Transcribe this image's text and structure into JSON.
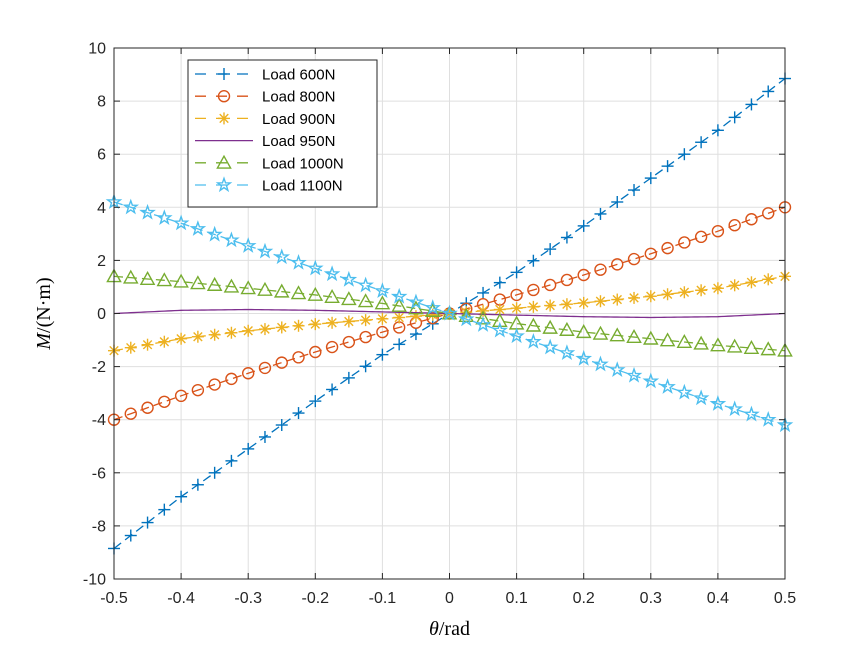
{
  "chart_data": {
    "type": "line",
    "xlabel_symbol": "θ",
    "xlabel_unit": "/rad",
    "ylabel_symbol": "M",
    "ylabel_unit": "/(N·m)",
    "xlim": [
      -0.5,
      0.5
    ],
    "ylim": [
      -10,
      10
    ],
    "xticks": [
      -0.5,
      -0.4,
      -0.3,
      -0.2,
      -0.1,
      0,
      0.1,
      0.2,
      0.3,
      0.4,
      0.5
    ],
    "xtick_labels": [
      "-0.5",
      "-0.4",
      "-0.3",
      "-0.2",
      "-0.1",
      "0",
      "0.1",
      "0.2",
      "0.3",
      "0.4",
      "0.5"
    ],
    "yticks": [
      -10,
      -8,
      -6,
      -4,
      -2,
      0,
      2,
      4,
      6,
      8,
      10
    ],
    "ytick_labels": [
      "-10",
      "-8",
      "-6",
      "-4",
      "-2",
      "0",
      "2",
      "4",
      "6",
      "8",
      "10"
    ],
    "grid": true,
    "legend_position": "top-left",
    "x_sample_step": 0.025,
    "series": [
      {
        "name": "Load 600N",
        "color": "#0072BD",
        "marker": "plus",
        "linestyle": "dashed",
        "x": [
          -0.5,
          -0.4,
          -0.3,
          -0.2,
          -0.1,
          0,
          0.1,
          0.2,
          0.3,
          0.4,
          0.5
        ],
        "y": [
          -8.85,
          -6.9,
          -5.1,
          -3.3,
          -1.55,
          0,
          1.55,
          3.3,
          5.1,
          6.9,
          8.85
        ]
      },
      {
        "name": "Load 800N",
        "color": "#D95319",
        "marker": "circle",
        "linestyle": "dashed",
        "x": [
          -0.5,
          -0.4,
          -0.3,
          -0.2,
          -0.1,
          0,
          0.1,
          0.2,
          0.3,
          0.4,
          0.5
        ],
        "y": [
          -4.0,
          -3.1,
          -2.25,
          -1.45,
          -0.7,
          0,
          0.7,
          1.45,
          2.25,
          3.1,
          4.0
        ]
      },
      {
        "name": "Load 900N",
        "color": "#EDB120",
        "marker": "asterisk",
        "linestyle": "dashed",
        "x": [
          -0.5,
          -0.4,
          -0.3,
          -0.2,
          -0.1,
          0,
          0.1,
          0.2,
          0.3,
          0.4,
          0.5
        ],
        "y": [
          -1.4,
          -0.95,
          -0.65,
          -0.4,
          -0.2,
          0,
          0.2,
          0.4,
          0.65,
          0.95,
          1.4
        ]
      },
      {
        "name": "Load 950N",
        "color": "#7E2F8E",
        "marker": "none",
        "linestyle": "solid",
        "x": [
          -0.5,
          -0.4,
          -0.3,
          -0.2,
          -0.1,
          0,
          0.1,
          0.2,
          0.3,
          0.4,
          0.5
        ],
        "y": [
          0.0,
          0.12,
          0.15,
          0.12,
          0.06,
          0,
          -0.06,
          -0.12,
          -0.15,
          -0.12,
          0.0
        ]
      },
      {
        "name": "Load 1000N",
        "color": "#77AC30",
        "marker": "triangle",
        "linestyle": "dashed",
        "x": [
          -0.5,
          -0.4,
          -0.3,
          -0.2,
          -0.1,
          0,
          0.1,
          0.2,
          0.3,
          0.4,
          0.5
        ],
        "y": [
          1.4,
          1.2,
          0.95,
          0.7,
          0.38,
          0,
          -0.38,
          -0.7,
          -0.95,
          -1.2,
          -1.4
        ]
      },
      {
        "name": "Load 1100N",
        "color": "#4DBEEE",
        "marker": "pentagram",
        "linestyle": "dashed",
        "x": [
          -0.5,
          -0.4,
          -0.3,
          -0.2,
          -0.1,
          0,
          0.1,
          0.2,
          0.3,
          0.4,
          0.5
        ],
        "y": [
          4.2,
          3.4,
          2.55,
          1.7,
          0.85,
          0,
          -0.85,
          -1.7,
          -2.55,
          -3.4,
          -4.2
        ]
      }
    ]
  }
}
